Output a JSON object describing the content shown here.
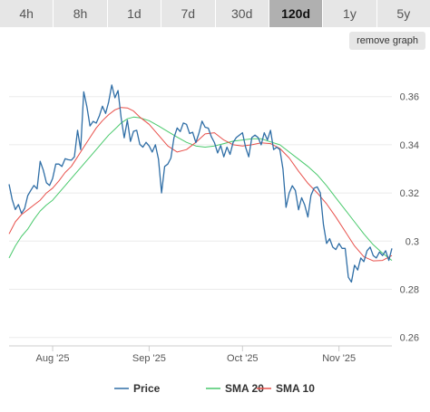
{
  "tabs": [
    {
      "label": "4h",
      "active": false
    },
    {
      "label": "8h",
      "active": false
    },
    {
      "label": "1d",
      "active": false
    },
    {
      "label": "7d",
      "active": false
    },
    {
      "label": "30d",
      "active": false
    },
    {
      "label": "120d",
      "active": true
    },
    {
      "label": "1y",
      "active": false
    },
    {
      "label": "5y",
      "active": false
    }
  ],
  "remove_graph_label": "remove graph",
  "chart_data": {
    "type": "line",
    "x_start": "2025-07-18",
    "x_end": "2025-11-18",
    "x_ticks": [
      {
        "label": "Aug '25",
        "date": "2025-08-01"
      },
      {
        "label": "Sep '25",
        "date": "2025-09-01"
      },
      {
        "label": "Oct '25",
        "date": "2025-10-01"
      },
      {
        "label": "Nov '25",
        "date": "2025-11-01"
      }
    ],
    "y_ticks": [
      0.26,
      0.28,
      0.3,
      0.32,
      0.34,
      0.36
    ],
    "y_tick_labels": [
      "0.26",
      "0.28",
      "0.3",
      "0.32",
      "0.34",
      "0.36"
    ],
    "ylim": [
      0.2565,
      0.3768
    ],
    "grid": true,
    "legend_position": "bottom",
    "colors": {
      "Price": "#2f6ea6",
      "SMA 20": "#49c96c",
      "SMA 10": "#e8504b"
    },
    "series": [
      {
        "name": "Price",
        "points": [
          [
            "2025-07-18",
            0.3236
          ],
          [
            "2025-07-19",
            0.3173
          ],
          [
            "2025-07-20",
            0.3131
          ],
          [
            "2025-07-21",
            0.3152
          ],
          [
            "2025-07-22",
            0.3115
          ],
          [
            "2025-07-23",
            0.3136
          ],
          [
            "2025-07-24",
            0.3189
          ],
          [
            "2025-07-25",
            0.3211
          ],
          [
            "2025-07-26",
            0.3231
          ],
          [
            "2025-07-27",
            0.3217
          ],
          [
            "2025-07-28",
            0.3331
          ],
          [
            "2025-07-29",
            0.3295
          ],
          [
            "2025-07-30",
            0.3242
          ],
          [
            "2025-07-31",
            0.3231
          ],
          [
            "2025-08-01",
            0.326
          ],
          [
            "2025-08-02",
            0.332
          ],
          [
            "2025-08-03",
            0.332
          ],
          [
            "2025-08-04",
            0.331
          ],
          [
            "2025-08-05",
            0.3342
          ],
          [
            "2025-08-06",
            0.3338
          ],
          [
            "2025-08-07",
            0.3336
          ],
          [
            "2025-08-08",
            0.335
          ],
          [
            "2025-08-09",
            0.346
          ],
          [
            "2025-08-10",
            0.338
          ],
          [
            "2025-08-11",
            0.362
          ],
          [
            "2025-08-12",
            0.3558
          ],
          [
            "2025-08-13",
            0.3478
          ],
          [
            "2025-08-14",
            0.3497
          ],
          [
            "2025-08-15",
            0.349
          ],
          [
            "2025-08-16",
            0.352
          ],
          [
            "2025-08-17",
            0.356
          ],
          [
            "2025-08-18",
            0.353
          ],
          [
            "2025-08-19",
            0.3578
          ],
          [
            "2025-08-20",
            0.3648
          ],
          [
            "2025-08-21",
            0.3595
          ],
          [
            "2025-08-22",
            0.3625
          ],
          [
            "2025-08-23",
            0.3513
          ],
          [
            "2025-08-24",
            0.3429
          ],
          [
            "2025-08-25",
            0.3502
          ],
          [
            "2025-08-26",
            0.3414
          ],
          [
            "2025-08-27",
            0.3456
          ],
          [
            "2025-08-28",
            0.346
          ],
          [
            "2025-08-29",
            0.3402
          ],
          [
            "2025-08-30",
            0.339
          ],
          [
            "2025-08-31",
            0.341
          ],
          [
            "2025-09-01",
            0.3395
          ],
          [
            "2025-09-02",
            0.337
          ],
          [
            "2025-09-03",
            0.34
          ],
          [
            "2025-09-04",
            0.334
          ],
          [
            "2025-09-05",
            0.32
          ],
          [
            "2025-09-06",
            0.331
          ],
          [
            "2025-09-07",
            0.332
          ],
          [
            "2025-09-08",
            0.3345
          ],
          [
            "2025-09-09",
            0.343
          ],
          [
            "2025-09-10",
            0.347
          ],
          [
            "2025-09-11",
            0.3455
          ],
          [
            "2025-09-12",
            0.349
          ],
          [
            "2025-09-13",
            0.3485
          ],
          [
            "2025-09-14",
            0.3447
          ],
          [
            "2025-09-15",
            0.3452
          ],
          [
            "2025-09-16",
            0.3409
          ],
          [
            "2025-09-17",
            0.3448
          ],
          [
            "2025-09-18",
            0.3498
          ],
          [
            "2025-09-19",
            0.3473
          ],
          [
            "2025-09-20",
            0.3469
          ],
          [
            "2025-09-21",
            0.3433
          ],
          [
            "2025-09-22",
            0.3409
          ],
          [
            "2025-09-23",
            0.3366
          ],
          [
            "2025-09-24",
            0.3397
          ],
          [
            "2025-09-25",
            0.335
          ],
          [
            "2025-09-26",
            0.339
          ],
          [
            "2025-09-27",
            0.336
          ],
          [
            "2025-09-28",
            0.341
          ],
          [
            "2025-09-29",
            0.343
          ],
          [
            "2025-09-30",
            0.344
          ],
          [
            "2025-10-01",
            0.345
          ],
          [
            "2025-10-02",
            0.339
          ],
          [
            "2025-10-03",
            0.335
          ],
          [
            "2025-10-04",
            0.343
          ],
          [
            "2025-10-05",
            0.344
          ],
          [
            "2025-10-06",
            0.343
          ],
          [
            "2025-10-07",
            0.34
          ],
          [
            "2025-10-08",
            0.345
          ],
          [
            "2025-10-09",
            0.342
          ],
          [
            "2025-10-10",
            0.346
          ],
          [
            "2025-10-11",
            0.338
          ],
          [
            "2025-10-12",
            0.339
          ],
          [
            "2025-10-13",
            0.338
          ],
          [
            "2025-10-14",
            0.33
          ],
          [
            "2025-10-15",
            0.314
          ],
          [
            "2025-10-16",
            0.32
          ],
          [
            "2025-10-17",
            0.323
          ],
          [
            "2025-10-18",
            0.321
          ],
          [
            "2025-10-19",
            0.313
          ],
          [
            "2025-10-20",
            0.318
          ],
          [
            "2025-10-21",
            0.315
          ],
          [
            "2025-10-22",
            0.31
          ],
          [
            "2025-10-23",
            0.319
          ],
          [
            "2025-10-24",
            0.322
          ],
          [
            "2025-10-25",
            0.3225
          ],
          [
            "2025-10-26",
            0.32
          ],
          [
            "2025-10-27",
            0.307
          ],
          [
            "2025-10-28",
            0.299
          ],
          [
            "2025-10-29",
            0.301
          ],
          [
            "2025-10-30",
            0.2975
          ],
          [
            "2025-10-31",
            0.2965
          ],
          [
            "2025-11-01",
            0.299
          ],
          [
            "2025-11-02",
            0.297
          ],
          [
            "2025-11-03",
            0.297
          ],
          [
            "2025-11-04",
            0.285
          ],
          [
            "2025-11-05",
            0.283
          ],
          [
            "2025-11-06",
            0.29
          ],
          [
            "2025-11-07",
            0.288
          ],
          [
            "2025-11-08",
            0.293
          ],
          [
            "2025-11-09",
            0.2915
          ],
          [
            "2025-11-10",
            0.296
          ],
          [
            "2025-11-11",
            0.2975
          ],
          [
            "2025-11-12",
            0.294
          ],
          [
            "2025-11-13",
            0.293
          ],
          [
            "2025-11-14",
            0.2955
          ],
          [
            "2025-11-15",
            0.294
          ],
          [
            "2025-11-16",
            0.296
          ],
          [
            "2025-11-17",
            0.292
          ],
          [
            "2025-11-18",
            0.297
          ]
        ]
      },
      {
        "name": "SMA 20",
        "points": [
          [
            "2025-07-18",
            0.293
          ],
          [
            "2025-07-20",
            0.298
          ],
          [
            "2025-07-22",
            0.302
          ],
          [
            "2025-07-24",
            0.305
          ],
          [
            "2025-07-26",
            0.309
          ],
          [
            "2025-07-28",
            0.3125
          ],
          [
            "2025-07-30",
            0.315
          ],
          [
            "2025-08-01",
            0.317
          ],
          [
            "2025-08-03",
            0.32
          ],
          [
            "2025-08-05",
            0.323
          ],
          [
            "2025-08-07",
            0.326
          ],
          [
            "2025-08-09",
            0.329
          ],
          [
            "2025-08-11",
            0.332
          ],
          [
            "2025-08-13",
            0.335
          ],
          [
            "2025-08-15",
            0.338
          ],
          [
            "2025-08-17",
            0.341
          ],
          [
            "2025-08-19",
            0.344
          ],
          [
            "2025-08-21",
            0.3465
          ],
          [
            "2025-08-23",
            0.349
          ],
          [
            "2025-08-25",
            0.3508
          ],
          [
            "2025-08-27",
            0.3515
          ],
          [
            "2025-08-29",
            0.3512
          ],
          [
            "2025-09-01",
            0.35
          ],
          [
            "2025-09-04",
            0.3478
          ],
          [
            "2025-09-07",
            0.3455
          ],
          [
            "2025-09-10",
            0.3432
          ],
          [
            "2025-09-13",
            0.341
          ],
          [
            "2025-09-16",
            0.3395
          ],
          [
            "2025-09-19",
            0.339
          ],
          [
            "2025-09-22",
            0.3395
          ],
          [
            "2025-09-25",
            0.3405
          ],
          [
            "2025-09-28",
            0.3415
          ],
          [
            "2025-10-01",
            0.342
          ],
          [
            "2025-10-04",
            0.3425
          ],
          [
            "2025-10-07",
            0.3425
          ],
          [
            "2025-10-10",
            0.3412
          ],
          [
            "2025-10-13",
            0.34
          ],
          [
            "2025-10-16",
            0.337
          ],
          [
            "2025-10-19",
            0.334
          ],
          [
            "2025-10-22",
            0.331
          ],
          [
            "2025-10-25",
            0.3275
          ],
          [
            "2025-10-28",
            0.323
          ],
          [
            "2025-10-31",
            0.318
          ],
          [
            "2025-11-03",
            0.313
          ],
          [
            "2025-11-06",
            0.308
          ],
          [
            "2025-11-09",
            0.303
          ],
          [
            "2025-11-12",
            0.2985
          ],
          [
            "2025-11-15",
            0.295
          ],
          [
            "2025-11-18",
            0.292
          ]
        ]
      },
      {
        "name": "SMA 10",
        "points": [
          [
            "2025-07-18",
            0.303
          ],
          [
            "2025-07-20",
            0.308
          ],
          [
            "2025-07-22",
            0.311
          ],
          [
            "2025-07-24",
            0.313
          ],
          [
            "2025-07-26",
            0.315
          ],
          [
            "2025-07-28",
            0.317
          ],
          [
            "2025-07-30",
            0.32
          ],
          [
            "2025-08-01",
            0.322
          ],
          [
            "2025-08-03",
            0.325
          ],
          [
            "2025-08-05",
            0.3285
          ],
          [
            "2025-08-07",
            0.331
          ],
          [
            "2025-08-09",
            0.335
          ],
          [
            "2025-08-11",
            0.339
          ],
          [
            "2025-08-13",
            0.343
          ],
          [
            "2025-08-15",
            0.347
          ],
          [
            "2025-08-17",
            0.35
          ],
          [
            "2025-08-19",
            0.3525
          ],
          [
            "2025-08-21",
            0.3545
          ],
          [
            "2025-08-23",
            0.3555
          ],
          [
            "2025-08-25",
            0.3553
          ],
          [
            "2025-08-27",
            0.354
          ],
          [
            "2025-08-29",
            0.3515
          ],
          [
            "2025-09-01",
            0.3485
          ],
          [
            "2025-09-04",
            0.344
          ],
          [
            "2025-09-07",
            0.3395
          ],
          [
            "2025-09-10",
            0.337
          ],
          [
            "2025-09-13",
            0.338
          ],
          [
            "2025-09-16",
            0.341
          ],
          [
            "2025-09-19",
            0.3445
          ],
          [
            "2025-09-22",
            0.345
          ],
          [
            "2025-09-25",
            0.342
          ],
          [
            "2025-09-28",
            0.34
          ],
          [
            "2025-10-01",
            0.3395
          ],
          [
            "2025-10-04",
            0.34
          ],
          [
            "2025-10-07",
            0.3408
          ],
          [
            "2025-10-10",
            0.3405
          ],
          [
            "2025-10-13",
            0.3385
          ],
          [
            "2025-10-16",
            0.3345
          ],
          [
            "2025-10-19",
            0.329
          ],
          [
            "2025-10-22",
            0.324
          ],
          [
            "2025-10-25",
            0.32
          ],
          [
            "2025-10-28",
            0.3155
          ],
          [
            "2025-10-31",
            0.31
          ],
          [
            "2025-11-03",
            0.304
          ],
          [
            "2025-11-06",
            0.298
          ],
          [
            "2025-11-09",
            0.2935
          ],
          [
            "2025-11-12",
            0.2918
          ],
          [
            "2025-11-15",
            0.292
          ],
          [
            "2025-11-18",
            0.294
          ]
        ]
      }
    ]
  }
}
